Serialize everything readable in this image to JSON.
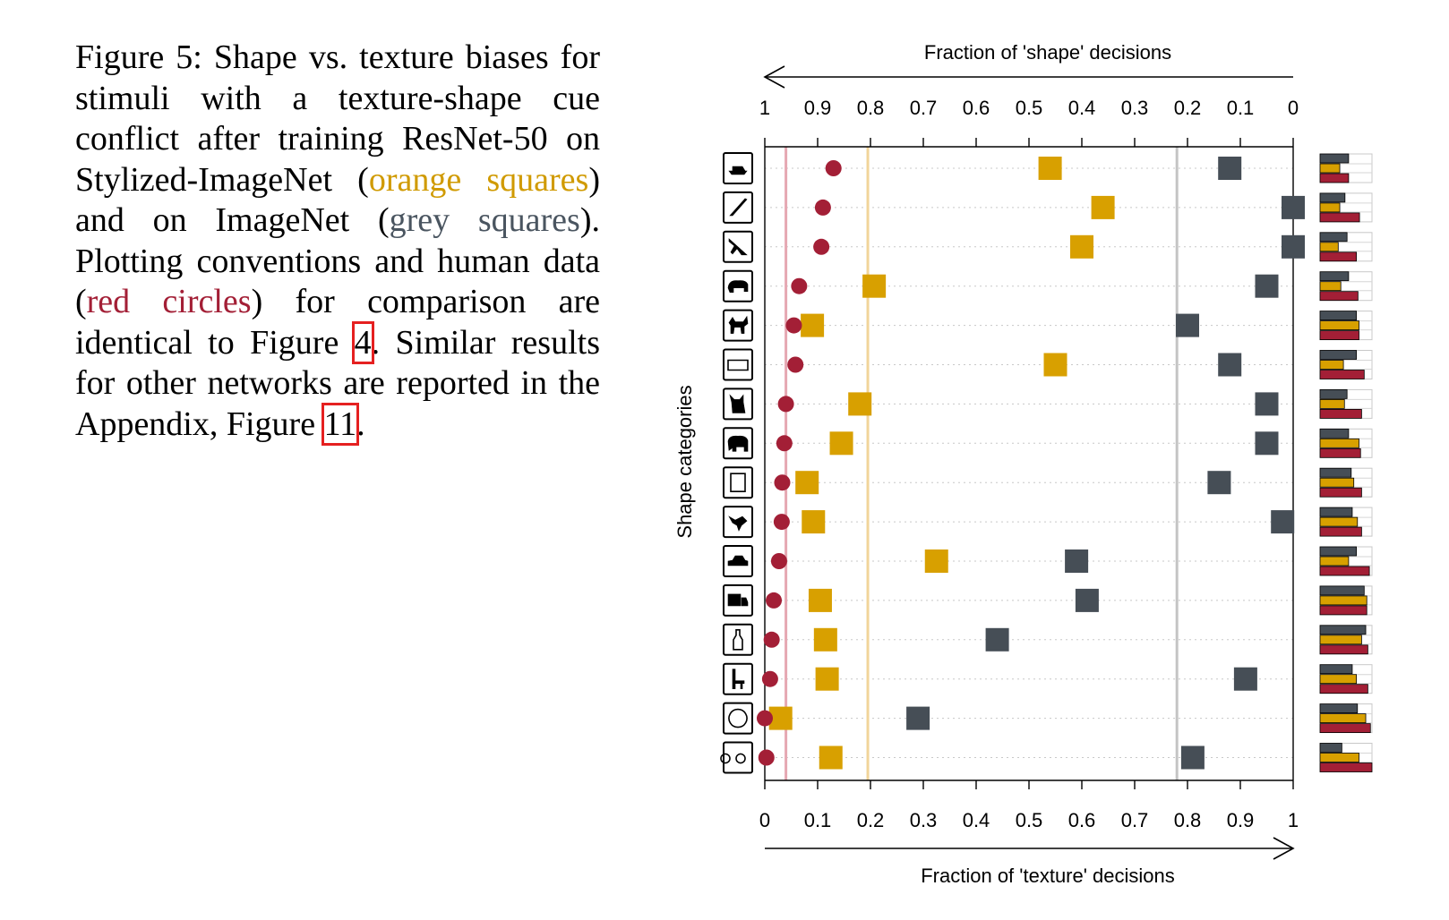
{
  "caption": {
    "lead": "Figure 5:  Shape vs.  texture biases for stimuli with a texture-shape cue conflict after training ResNet-50 on Stylized-ImageNet (",
    "orange": "orange squares",
    "mid1": ") and on ImageNet (",
    "grey": "grey squares",
    "mid2": ").  Plotting conventions and human data (",
    "red": "red circles",
    "mid3": ") for comparison are identical to Figure ",
    "fig_ref": "4",
    "mid4": ". Similar results for other networks are reported in the Appendix, Figure ",
    "fig_ref2": "11",
    "end": "."
  },
  "colors": {
    "human": "#A31F36",
    "stylized": "#D8A000",
    "imagenet": "#464E56"
  },
  "chart_data": {
    "type": "scatter",
    "top_label": "Fraction of 'shape' decisions",
    "bottom_label": "Fraction of 'texture' decisions",
    "ylabel": "Shape categories",
    "top_ticks": [
      "1",
      "0.9",
      "0.8",
      "0.7",
      "0.6",
      "0.5",
      "0.4",
      "0.3",
      "0.2",
      "0.1",
      "0"
    ],
    "bottom_ticks": [
      "0",
      "0.1",
      "0.2",
      "0.3",
      "0.4",
      "0.5",
      "0.6",
      "0.7",
      "0.8",
      "0.9",
      "1"
    ],
    "xlim": [
      0,
      1
    ],
    "categories": [
      "boat",
      "knife",
      "airplane",
      "bear",
      "dog",
      "keyboard",
      "cat",
      "elephant",
      "oven",
      "bird",
      "car",
      "truck",
      "bottle",
      "chair",
      "clock",
      "bicycle"
    ],
    "vlines": [
      {
        "series": "human",
        "x": 0.04
      },
      {
        "series": "stylized",
        "x": 0.195
      },
      {
        "series": "imagenet",
        "x": 0.78
      }
    ],
    "series": [
      {
        "key": "human",
        "marker": "circle",
        "values": [
          0.13,
          0.11,
          0.107,
          0.065,
          0.055,
          0.058,
          0.04,
          0.037,
          0.033,
          0.032,
          0.027,
          0.017,
          0.013,
          0.01,
          0.0,
          0.003
        ]
      },
      {
        "key": "stylized",
        "marker": "square",
        "values": [
          0.54,
          0.64,
          0.6,
          0.207,
          0.09,
          0.55,
          0.18,
          0.145,
          0.08,
          0.092,
          0.325,
          0.105,
          0.115,
          0.118,
          0.03,
          0.125
        ]
      },
      {
        "key": "imagenet",
        "marker": "square",
        "values": [
          0.88,
          1.0,
          1.0,
          0.95,
          0.8,
          0.88,
          0.95,
          0.95,
          0.86,
          0.98,
          0.59,
          0.61,
          0.44,
          0.91,
          0.29,
          0.81
        ]
      }
    ],
    "side_bars": {
      "description_free": true,
      "rows": [
        [
          0.55,
          0.38,
          0.55
        ],
        [
          0.48,
          0.38,
          0.76
        ],
        [
          0.52,
          0.35,
          0.7
        ],
        [
          0.55,
          0.4,
          0.73
        ],
        [
          0.7,
          0.75,
          0.75
        ],
        [
          0.7,
          0.45,
          0.85
        ],
        [
          0.52,
          0.47,
          0.8
        ],
        [
          0.55,
          0.75,
          0.78
        ],
        [
          0.6,
          0.65,
          0.8
        ],
        [
          0.62,
          0.72,
          0.8
        ],
        [
          0.7,
          0.55,
          0.95
        ],
        [
          0.85,
          0.9,
          0.9
        ],
        [
          0.88,
          0.8,
          0.92
        ],
        [
          0.62,
          0.7,
          0.92
        ],
        [
          0.72,
          0.88,
          0.97
        ],
        [
          0.42,
          0.75,
          1.0
        ]
      ]
    }
  }
}
